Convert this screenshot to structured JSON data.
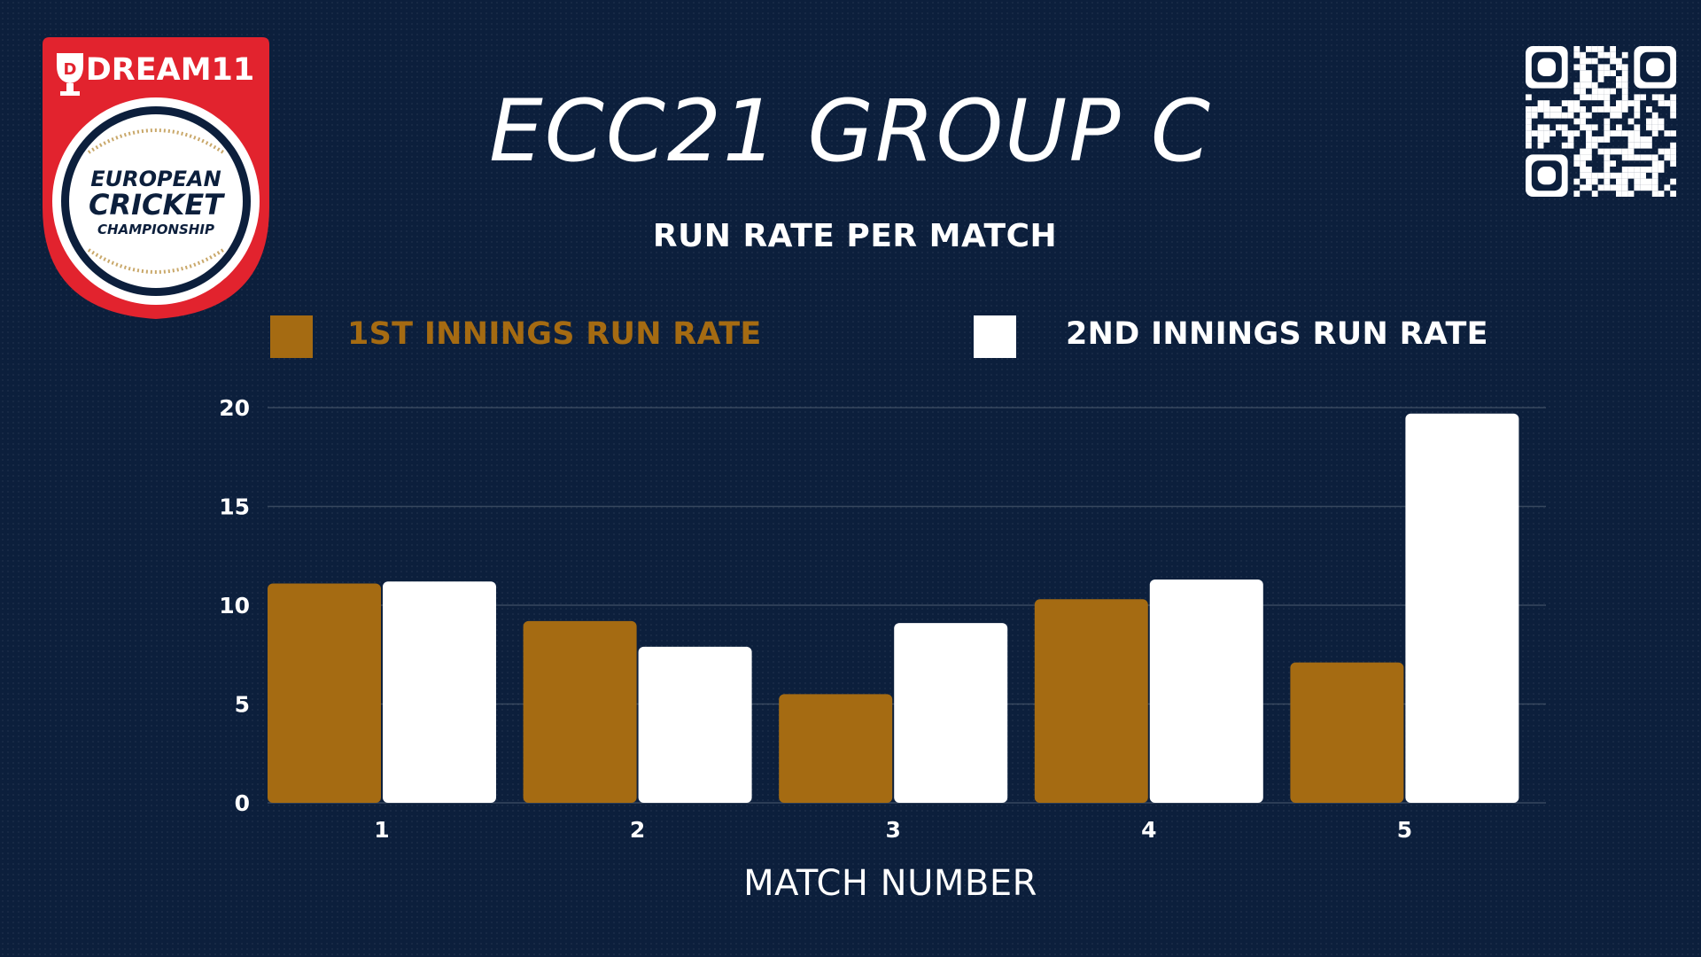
{
  "logo": {
    "sponsor": "DREAM11",
    "line1": "EUROPEAN",
    "line2": "CRICKET",
    "line3": "CHAMPIONSHIP"
  },
  "title": "ECC21 GROUP C",
  "colors": {
    "background": "#0c1f3c",
    "first_innings": "#a56b12",
    "second_innings": "#ffffff",
    "logo_red": "#e2232e"
  },
  "chart_data": {
    "type": "bar",
    "title": "RUN RATE PER MATCH",
    "xlabel": "MATCH NUMBER",
    "ylabel": "",
    "categories": [
      "1",
      "2",
      "3",
      "4",
      "5"
    ],
    "series": [
      {
        "name": "1ST INNINGS RUN RATE",
        "values": [
          11.1,
          9.2,
          5.5,
          10.3,
          7.1
        ]
      },
      {
        "name": "2ND INNINGS RUN RATE",
        "values": [
          11.2,
          7.9,
          9.1,
          11.3,
          19.7
        ]
      }
    ],
    "ylim": [
      0,
      20
    ],
    "yticks": [
      0,
      5,
      10,
      15,
      20
    ],
    "grid": true,
    "legend": "top"
  }
}
